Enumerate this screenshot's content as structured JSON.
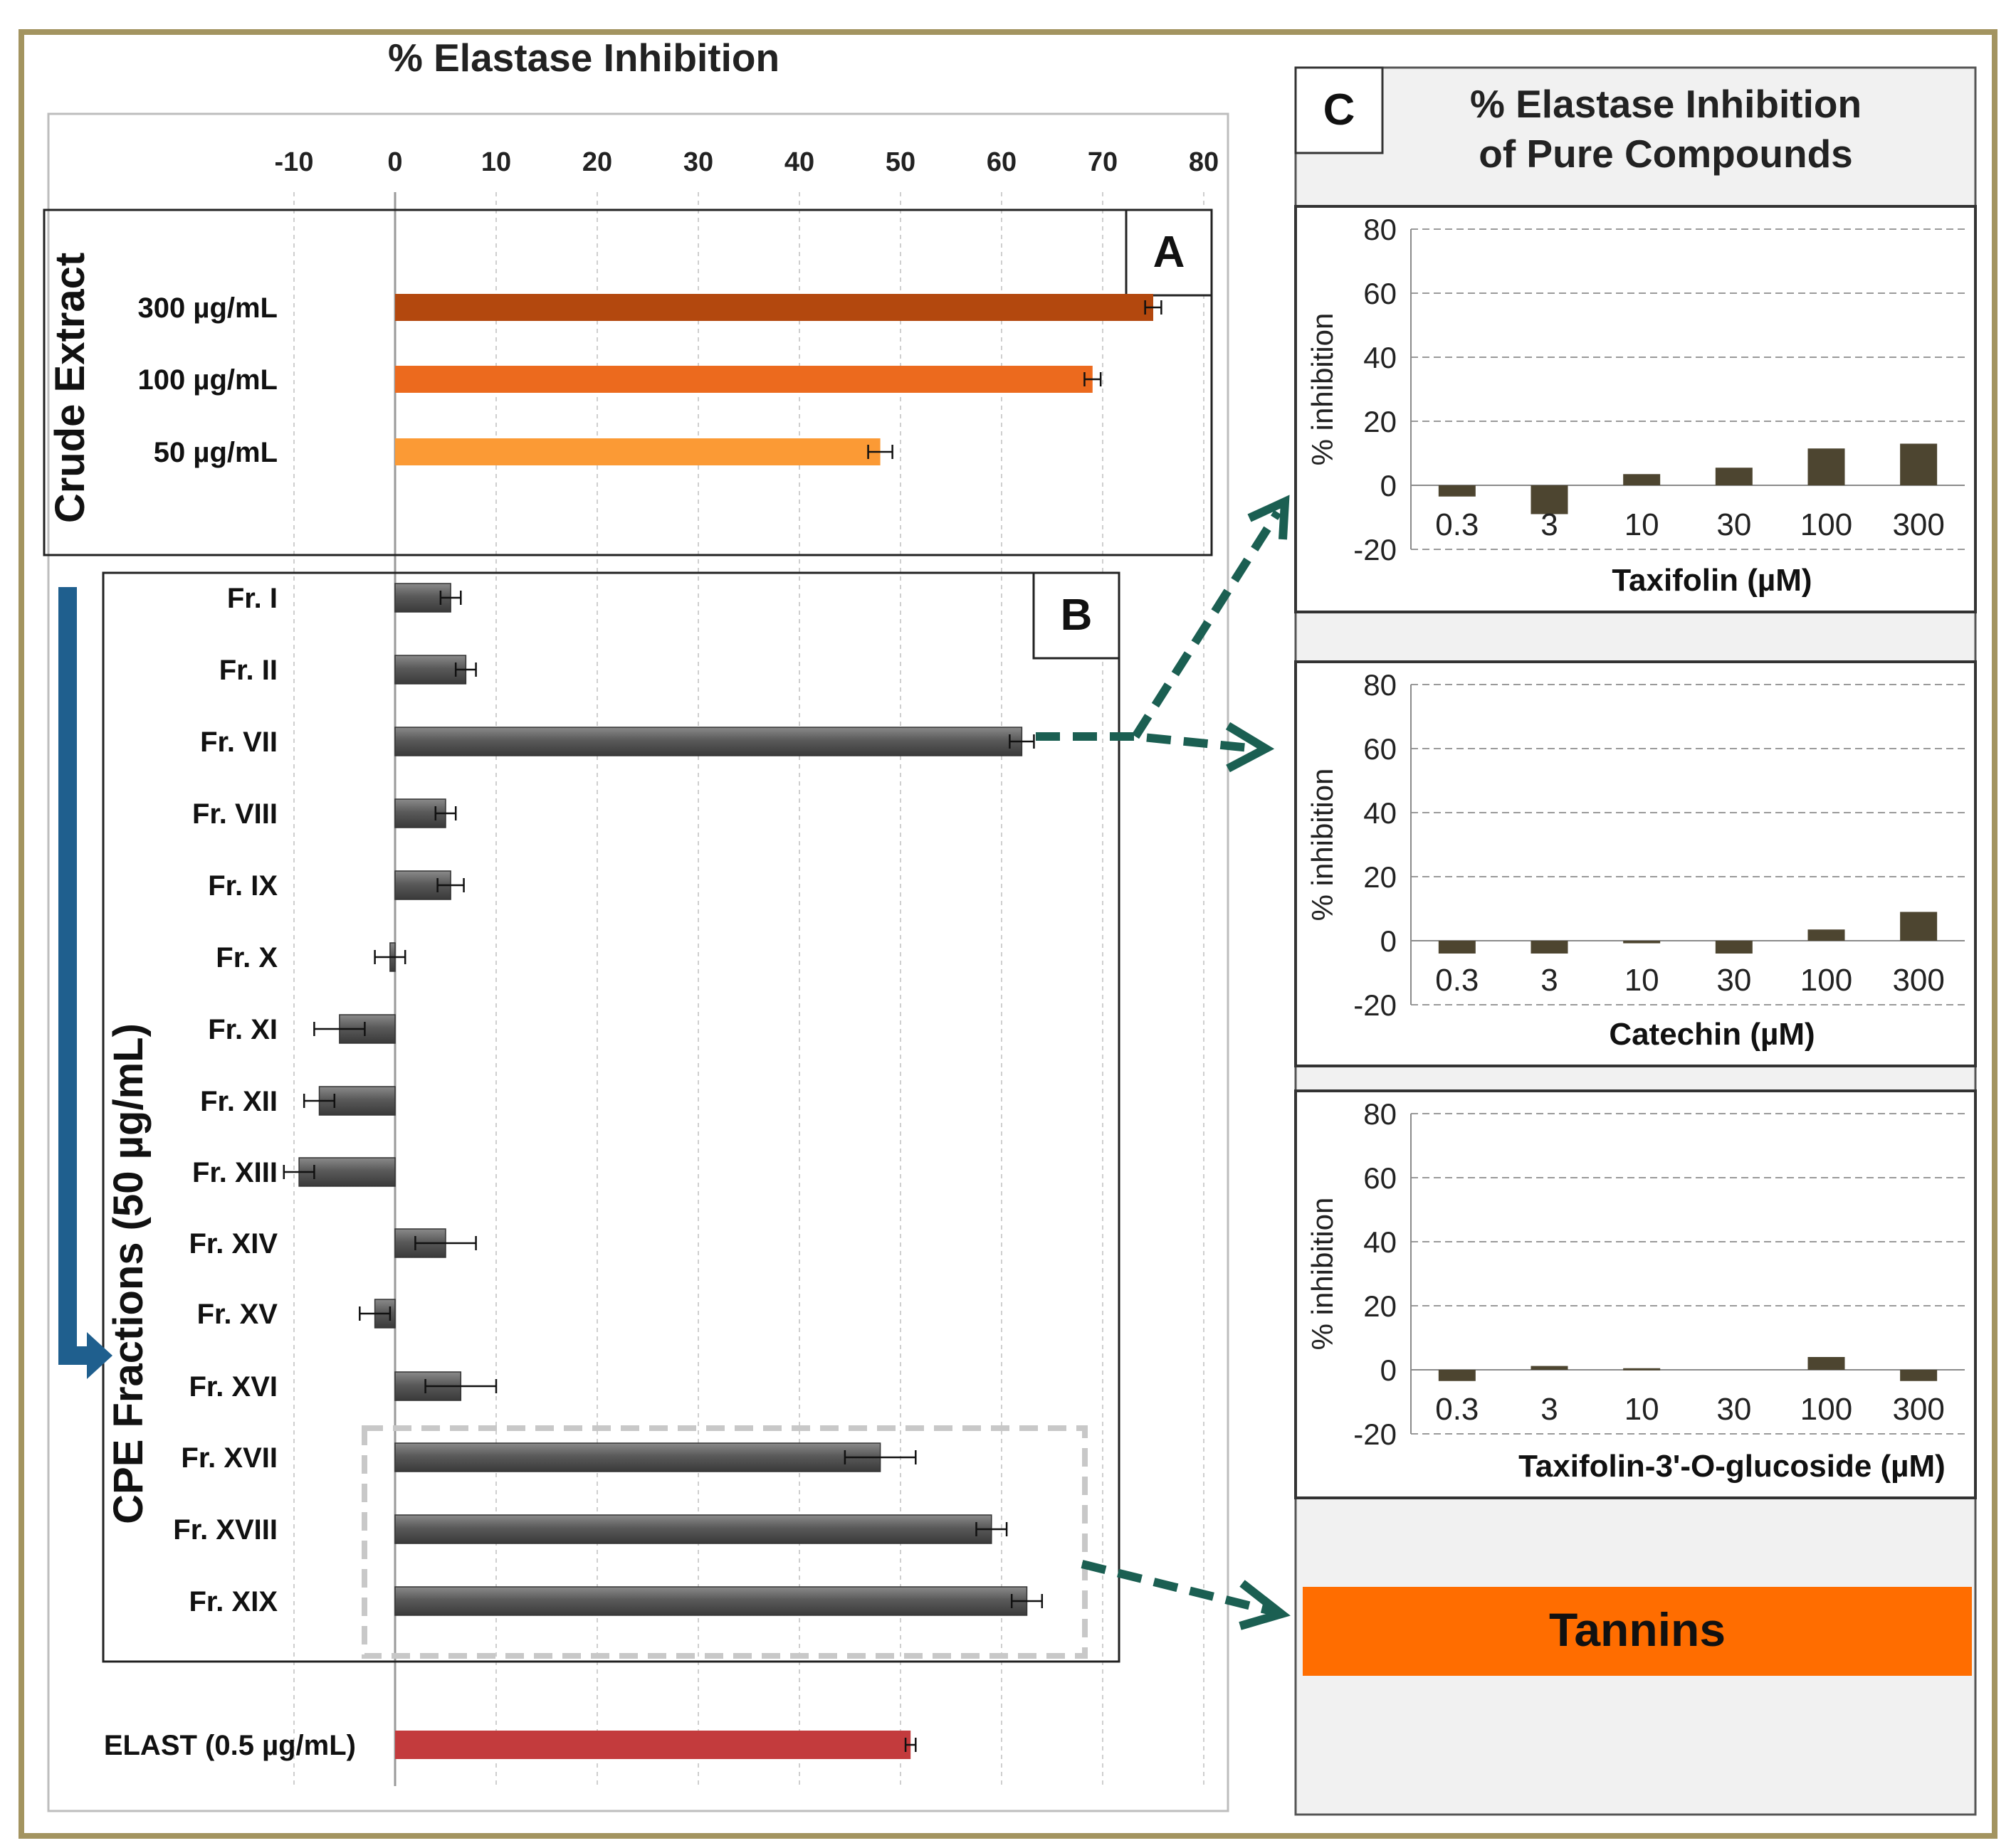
{
  "colors": {
    "frame": "#a39460",
    "bar_grey": "#4d4d4d",
    "bar_grey_light": "#9b9b9b",
    "bar_dark_olive": "#4d4530",
    "crude": [
      "#b3480e",
      "#ec6a1e",
      "#fb9a35"
    ],
    "elast": "#c33b3d",
    "arrow_blue": "#1f5f8e",
    "arrow_teal": "#1b5f52",
    "tannins_bg": "#ff6d00",
    "panel_bg": "#f1f1f1"
  },
  "labels": {
    "main_title": "% Elastase Inhibition",
    "panel_a": "A",
    "panel_b": "B",
    "panel_c": "C",
    "crude_group": "Crude  Extract",
    "cpe_group": "CPE Fractions (50 µg/mL)",
    "panel_c_title_1": "% Elastase Inhibition",
    "panel_c_title_2": "of Pure Compounds",
    "tannins": "Tannins",
    "y_axis": "% inhibition"
  },
  "chart_data": [
    {
      "type": "bar",
      "orientation": "horizontal",
      "title": "% Elastase Inhibition",
      "xlim": [
        -10,
        80
      ],
      "xticks": [
        -10,
        0,
        10,
        20,
        30,
        40,
        50,
        60,
        70,
        80
      ],
      "grid": true,
      "groups": [
        {
          "name": "Crude  Extract",
          "panel": "A",
          "categories": [
            "300 µg/mL",
            "100 µg/mL",
            "50 µg/mL"
          ],
          "values": [
            75,
            69,
            48
          ],
          "errors": [
            0.8,
            0.8,
            1.2
          ]
        },
        {
          "name": "CPE Fractions (50 µg/mL)",
          "panel": "B",
          "categories": [
            "Fr. I",
            "Fr. II",
            "Fr. VII",
            "Fr. VIII",
            "Fr. IX",
            "Fr. X",
            "Fr. XI",
            "Fr. XII",
            "Fr. XIII",
            "Fr. XIV",
            "Fr. XV",
            "Fr. XVI",
            "Fr. XVII",
            "Fr. XVIII",
            "Fr. XIX"
          ],
          "values": [
            5.5,
            7,
            62,
            5,
            5.5,
            -0.5,
            -5.5,
            -7.5,
            -9.5,
            5,
            -2,
            6.5,
            48,
            59,
            62.5
          ],
          "errors": [
            1,
            1,
            1.2,
            1,
            1.3,
            1.5,
            2.5,
            1.5,
            1.5,
            3,
            1.5,
            3.5,
            3.5,
            1.5,
            1.5
          ]
        },
        {
          "name": "",
          "panel": "",
          "categories": [
            "ELAST (0.5 µg/mL)"
          ],
          "values": [
            51
          ],
          "errors": [
            0.5
          ]
        }
      ]
    },
    {
      "type": "bar",
      "xlabel": "Taxifolin (µM)",
      "ylabel": "% inhibition",
      "ylim": [
        -20,
        80
      ],
      "yticks": [
        -20,
        0,
        20,
        40,
        60,
        80
      ],
      "categories": [
        "0.3",
        "3",
        "10",
        "30",
        "100",
        "300"
      ],
      "values": [
        -3.5,
        -9,
        3.5,
        5.5,
        11.5,
        13
      ],
      "grid": true
    },
    {
      "type": "bar",
      "xlabel": "Catechin (µM)",
      "ylabel": "% inhibition",
      "ylim": [
        -20,
        80
      ],
      "yticks": [
        -20,
        0,
        20,
        40,
        60,
        80
      ],
      "categories": [
        "0.3",
        "3",
        "10",
        "30",
        "100",
        "300"
      ],
      "values": [
        -4,
        -4,
        -0.8,
        -4,
        3.5,
        9
      ],
      "grid": true
    },
    {
      "type": "bar",
      "xlabel": "Taxifolin-3'-O-glucoside (µM)",
      "ylabel": "% inhibition",
      "ylim": [
        -20,
        80
      ],
      "yticks": [
        -20,
        0,
        20,
        40,
        60,
        80
      ],
      "categories": [
        "0.3",
        "3",
        "10",
        "30",
        "100",
        "300"
      ],
      "values": [
        -3.5,
        1.2,
        0.5,
        0,
        4,
        -3.5
      ],
      "grid": true
    }
  ]
}
